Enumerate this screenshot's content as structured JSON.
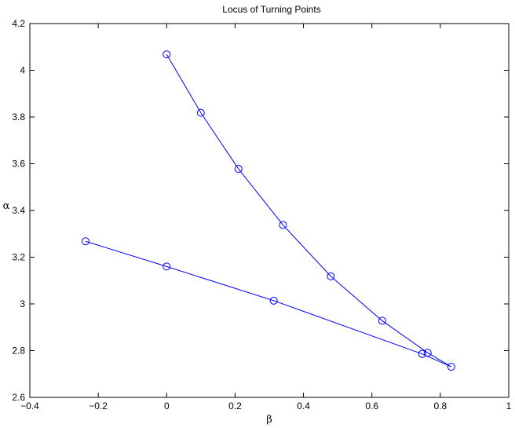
{
  "chart_data": {
    "type": "line",
    "title": "Locus of Turning Points",
    "xlabel": "β",
    "ylabel": "α",
    "xlim": [
      -0.4,
      1
    ],
    "ylim": [
      2.6,
      4.2
    ],
    "x_ticks": [
      -0.4,
      -0.2,
      0,
      0.2,
      0.4,
      0.6,
      0.8,
      1
    ],
    "x_tick_labels": [
      "−0.4",
      "−0.2",
      "0",
      "0.2",
      "0.4",
      "0.6",
      "0.8",
      "1"
    ],
    "y_ticks": [
      2.6,
      2.8,
      3.0,
      3.2,
      3.4,
      3.6,
      3.8,
      4.0,
      4.2
    ],
    "y_tick_labels": [
      "2.6",
      "2.8",
      "3",
      "3.2",
      "3.4",
      "3.6",
      "3.8",
      "4",
      "4.2"
    ],
    "grid": false,
    "marker": "circle",
    "color": "#0000ff",
    "series": [
      {
        "x": [
          0.0,
          0.1,
          0.21,
          0.34,
          0.48,
          0.63,
          0.763,
          0.832,
          0.747,
          0.313,
          0.0,
          -0.237
        ],
        "y": [
          4.068,
          3.818,
          3.578,
          3.338,
          3.118,
          2.928,
          2.791,
          2.731,
          2.786,
          3.014,
          3.16,
          3.268
        ]
      }
    ]
  }
}
